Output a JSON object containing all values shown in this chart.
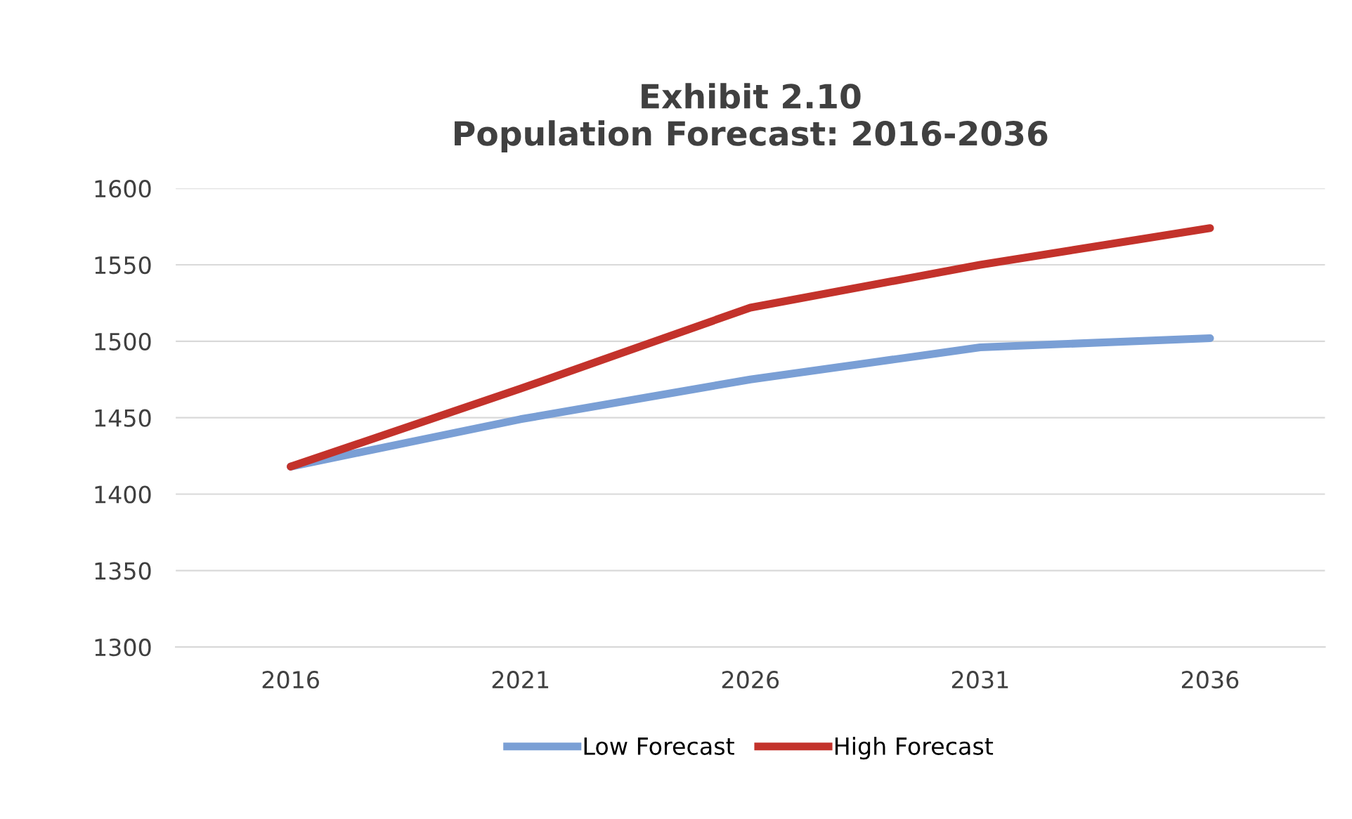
{
  "chart_data": {
    "type": "line",
    "title": "Exhibit 2.10\nPopulation Forecast: 2016-2036",
    "categories": [
      "2016",
      "2021",
      "2026",
      "2031",
      "2036"
    ],
    "series": [
      {
        "name": "Low Forecast",
        "color": "#7a9fd5",
        "values": [
          1418,
          1449,
          1475,
          1496,
          1502
        ]
      },
      {
        "name": "High Forecast",
        "color": "#c3322b",
        "values": [
          1418,
          1469,
          1522,
          1550,
          1574
        ]
      }
    ],
    "ylim": [
      1300,
      1600
    ],
    "yticks": [
      1300,
      1350,
      1400,
      1450,
      1500,
      1550,
      1600
    ],
    "grid": "y",
    "legend": "bottom",
    "marker": "none",
    "line_style": "solid"
  }
}
